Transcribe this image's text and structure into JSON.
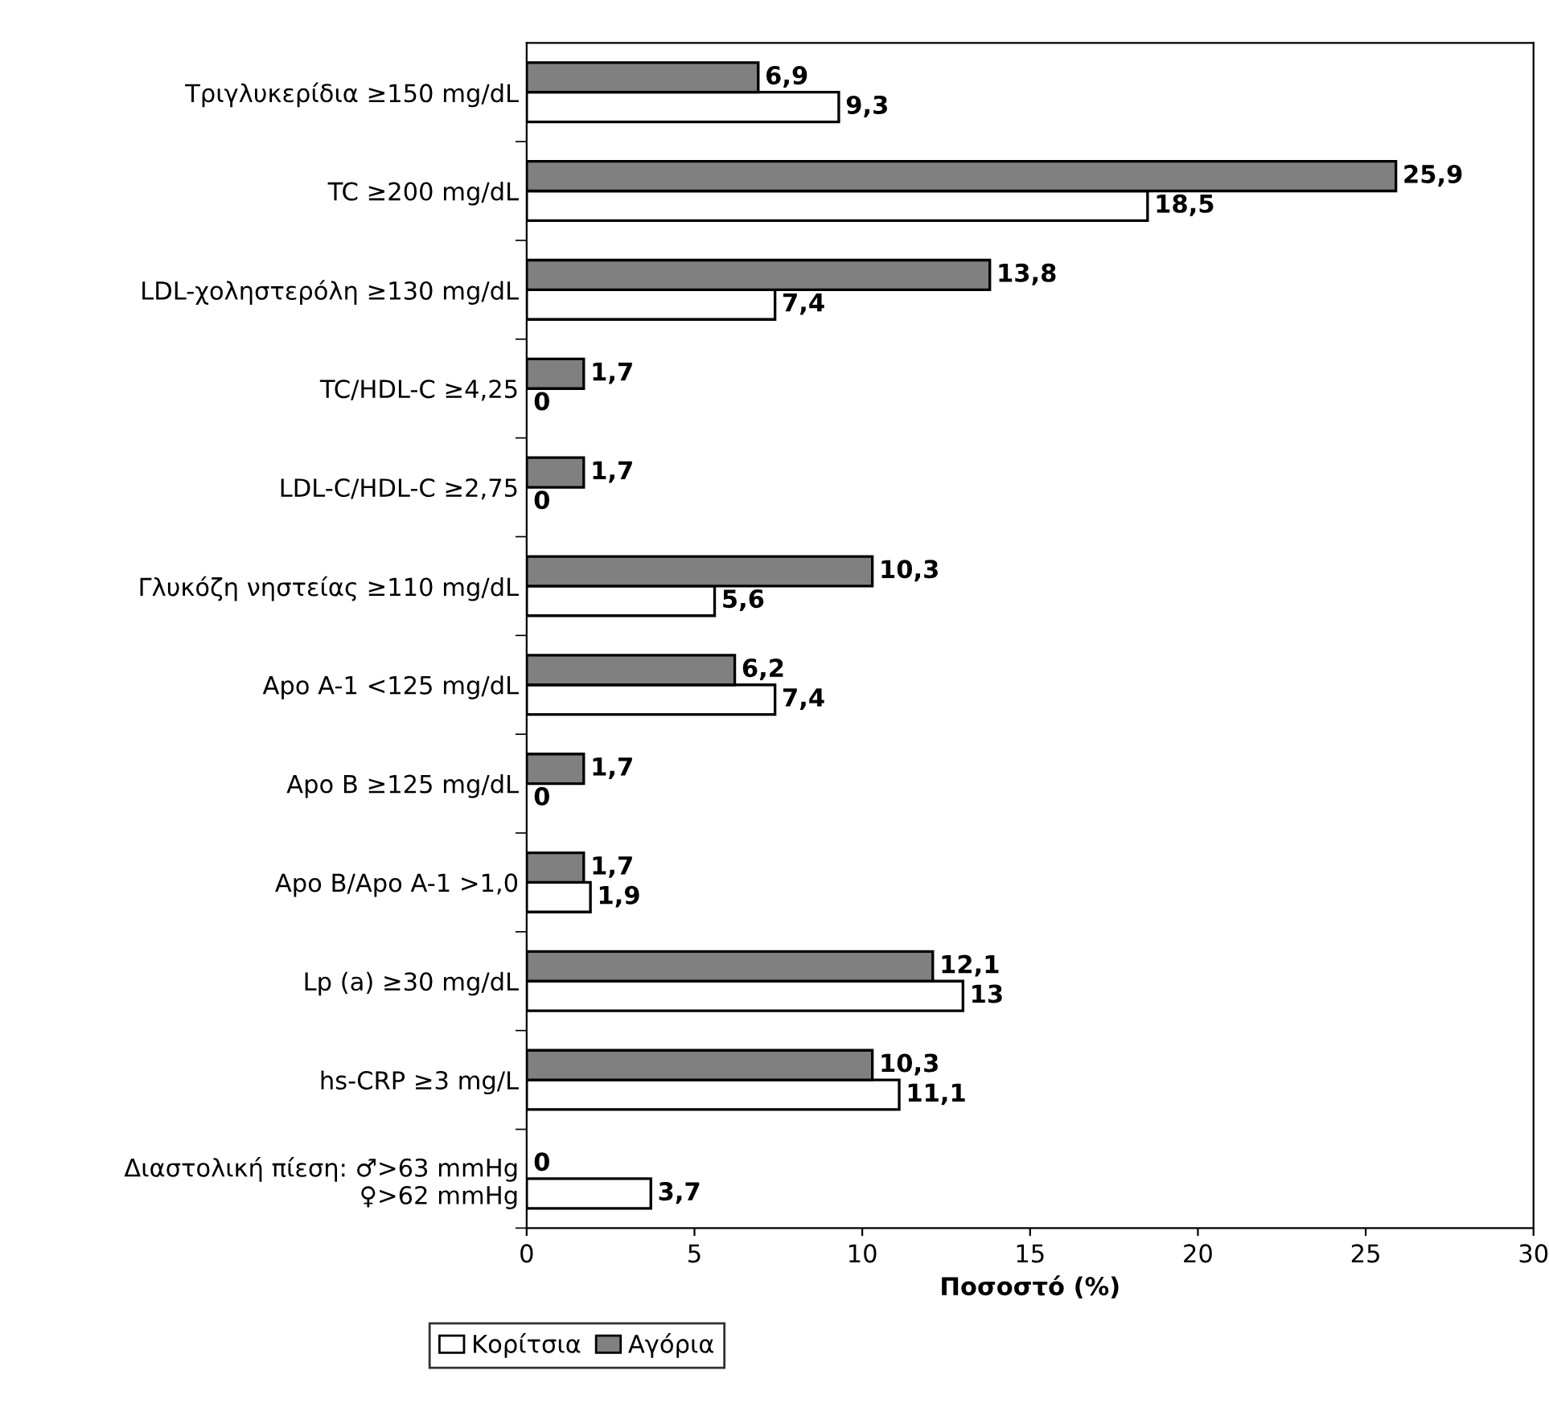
{
  "chart_data": {
    "type": "bar",
    "orientation": "horizontal",
    "xlabel": "Ποσοστό (%)",
    "categories": [
      "Τριγλυκερίδια ≥150 mg/dL",
      "TC ≥200 mg/dL",
      "LDL-χοληστερόλη ≥130 mg/dL",
      "TC/HDL-C ≥4,25",
      "LDL-C/HDL-C ≥2,75",
      "Γλυκόζη νηστείας ≥110 mg/dL",
      "Apo A-1 <125 mg/dL",
      "Apo B ≥125 mg/dL",
      "Apo B/Apo A-1 >1,0",
      "Lp (a) ≥30 mg/dL",
      "hs-CRP ≥3 mg/L",
      "Διαστολική πίεση: ♂>63 mmHg\n♀>62 mmHg"
    ],
    "series": [
      {
        "name": "Κορίτσια",
        "color": "#ffffff",
        "values": [
          9.3,
          18.5,
          7.4,
          0,
          0,
          5.6,
          7.4,
          0,
          1.9,
          13,
          11.1,
          3.7
        ],
        "value_labels": [
          "9,3",
          "18,5",
          "7,4",
          "0",
          "0",
          "5,6",
          "7,4",
          "0",
          "1,9",
          "13",
          "11,1",
          "3,7"
        ]
      },
      {
        "name": "Αγόρια",
        "color": "#808080",
        "values": [
          6.9,
          25.9,
          13.8,
          1.7,
          1.7,
          10.3,
          6.2,
          1.7,
          1.7,
          12.1,
          10.3,
          0
        ],
        "value_labels": [
          "6,9",
          "25,9",
          "13,8",
          "1,7",
          "1,7",
          "10,3",
          "6,2",
          "1,7",
          "1,7",
          "12,1",
          "10,3",
          "0"
        ]
      }
    ],
    "xlim": [
      0,
      30
    ],
    "xticks": [
      0,
      5,
      10,
      15,
      20,
      25,
      30
    ],
    "grid": false,
    "legend": "bottom"
  }
}
